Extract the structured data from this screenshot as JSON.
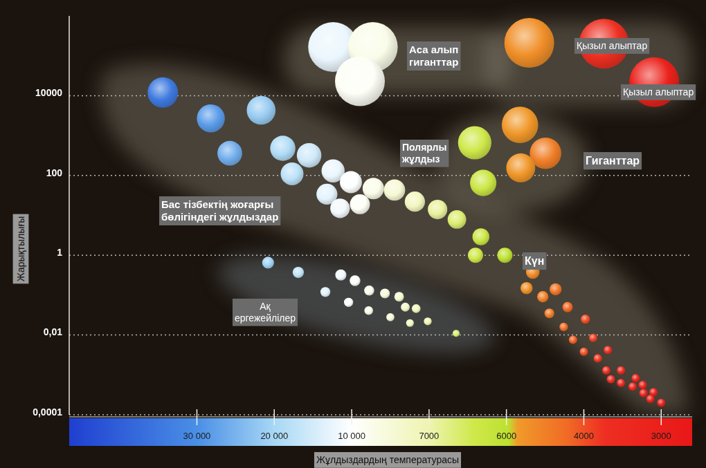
{
  "chart_data": {
    "type": "scatter",
    "x_label": "Жұлдыздардың температурасы",
    "y_label": "Жарықтылығы",
    "log": "y",
    "grid": true,
    "xlim": [
      46500,
      2600
    ],
    "xticks": [
      {
        "value": 30000,
        "label": "30 000"
      },
      {
        "value": 20000,
        "label": "20 000"
      },
      {
        "value": 10000,
        "label": "10 000"
      },
      7000,
      6000,
      4000,
      3000
    ],
    "ylim": [
      0.0001,
      1000000
    ],
    "yticks": [
      {
        "value": 0.0001,
        "label": "0,0001"
      },
      {
        "value": 0.01,
        "label": "0,01"
      },
      1,
      100,
      10000
    ],
    "annotations": [
      "Аса алып гиганттар",
      "Қызыл алыптар",
      "Қызыл алыптар",
      "Полярлы жұлдыз",
      "Гиганттар",
      "Бас тізбектің жоғарғы бөлігіндегі жұлдыздар",
      "Күн",
      "Ақ ергежейлілер"
    ],
    "series": [
      {
        "x": [
          34400,
          28200,
          21700,
          25750,
          18900,
          15500,
          17700,
          12400,
          10100,
          9160,
          8340,
          13200,
          11500,
          9680,
          7550,
          6890,
          6640,
          6330,
          6400,
          6020,
          5320,
          5480,
          4730,
          5060,
          4420,
          4890,
          4520,
          3980,
          4280,
          3880,
          4000,
          3820,
          3690,
          3710,
          3520,
          3650,
          3330,
          3520,
          3370,
          3240,
          3230,
          3100,
          3140,
          3000
        ],
        "values": [
          12000,
          2700,
          4300,
          360,
          480,
          320,
          110,
          130,
          68,
          47,
          43,
          34,
          15,
          19,
          22,
          14,
          7.9,
          2.9,
          1.0,
          1,
          0.38,
          0.15,
          0.14,
          0.091,
          0.05,
          0.035,
          0.016,
          0.025,
          0.0076,
          0.0085,
          0.0038,
          0.0026,
          0.0042,
          0.0013,
          0.0013,
          0.00078,
          0.00083,
          0.00063,
          0.00051,
          0.00056,
          0.00035,
          0.00037,
          0.00025,
          0.0002
        ]
      },
      {
        "x": [
          20800,
          16900,
          11400,
          9870,
          9320,
          13400,
          8710,
          10400,
          8160,
          7920,
          7500,
          9340,
          8500,
          7740,
          7050,
          6650
        ],
        "values": [
          0.65,
          0.37,
          0.32,
          0.23,
          0.13,
          0.12,
          0.11,
          0.066,
          0.091,
          0.05,
          0.046,
          0.041,
          0.028,
          0.02,
          0.022,
          0.011
        ]
      },
      {
        "x": [
          12400,
          9180,
          9680
        ],
        "values": [
          166000,
          166000,
          23000
        ]
      },
      {
        "x": [
          5410,
          3740,
          3090
        ],
        "values": [
          210000,
          200000,
          22000
        ]
      },
      {
        "x": [
          6410,
          6300,
          5650,
          4990,
          5630
        ],
        "values": [
          660,
          65,
          1860,
          360,
          155
        ]
      }
    ]
  }
}
